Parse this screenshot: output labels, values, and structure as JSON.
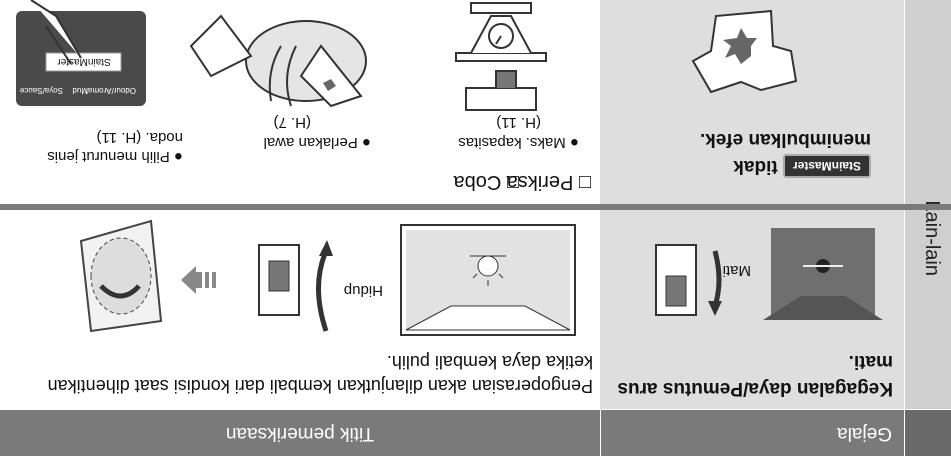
{
  "header": {
    "symptom": "Gejala",
    "check": "Titik pemeriksaan"
  },
  "side_label": "Lain-lain",
  "rows": [
    {
      "symptom": "Kegagalan daya/Pemutus arus mati.",
      "check": "Pengoperasian akan dilanjutkan kembali dari kondisi saat dihentikan ketika daya kembali pulih.",
      "labels": {
        "off": "Mati",
        "on": "Hidup"
      }
    },
    {
      "symptom_badge": "StainMaster",
      "symptom": "tidak menimbulkan efek.",
      "checks": [
        {
          "heading": "□ Periksa",
          "items": [
            "● Maks. kapasitas",
            "(H. 11)"
          ]
        },
        {
          "heading": "□ Coba",
          "items": [
            "● Perlakan awal",
            "(H. 7)",
            "● Pilih menurut jenis noda. (H. 11)"
          ]
        }
      ],
      "panel": {
        "button": "StainMaster",
        "keys": [
          "Odour/Aroma*",
          "Mud",
          "Soya/Sauce"
        ]
      }
    }
  ]
}
